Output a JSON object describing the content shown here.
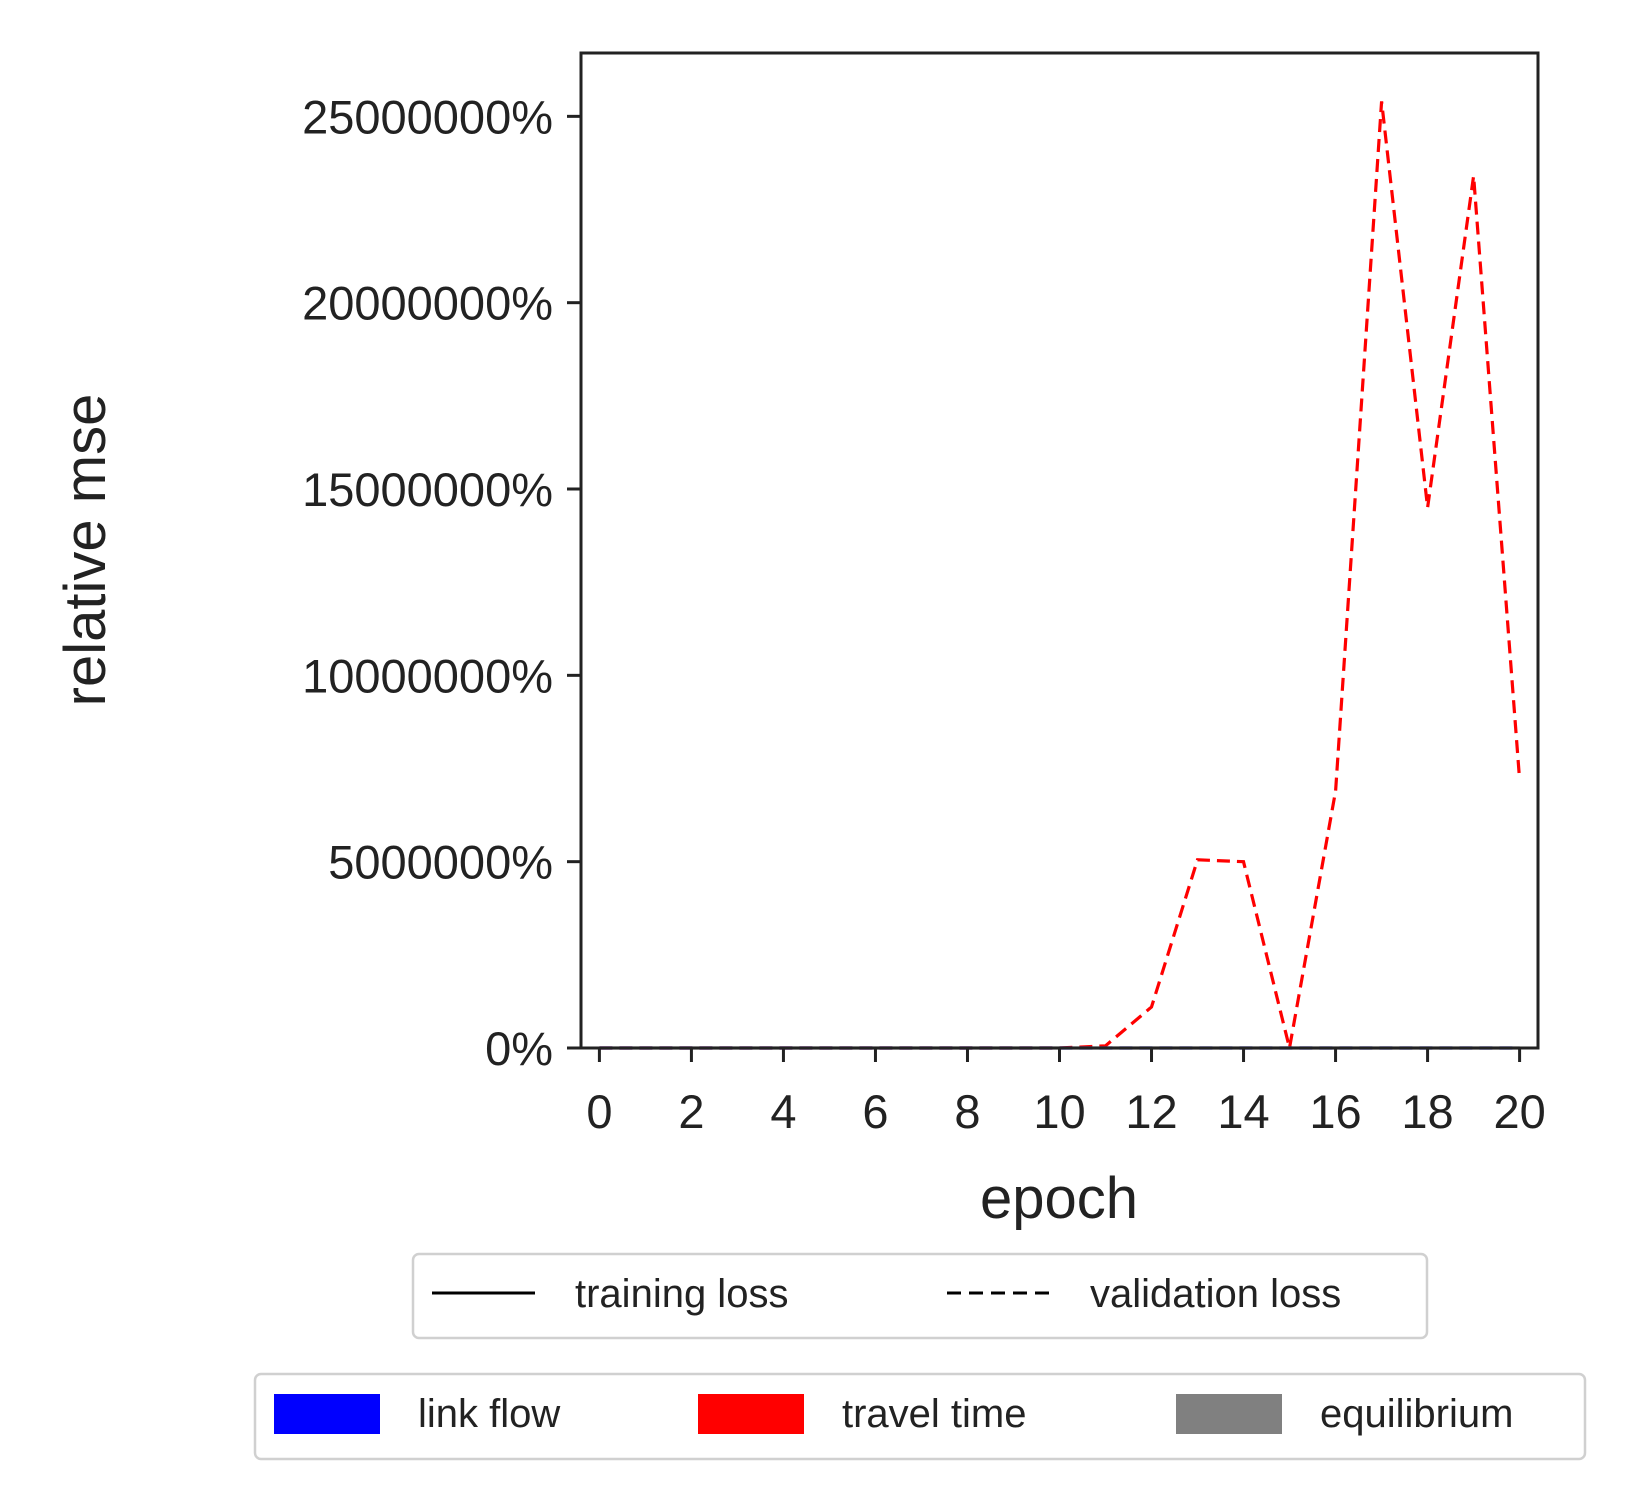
{
  "chart_data": {
    "type": "line",
    "xlabel": "epoch",
    "ylabel": "relative mse",
    "xlim": [
      -0.4,
      20.4
    ],
    "ylim": [
      0,
      26700000
    ],
    "x_ticks": [
      0,
      2,
      4,
      6,
      8,
      10,
      12,
      14,
      16,
      18,
      20
    ],
    "y_ticks": [
      0,
      5000000,
      10000000,
      15000000,
      20000000,
      25000000
    ],
    "y_tick_labels": [
      "0%",
      "5000000%",
      "10000000%",
      "15000000%",
      "20000000%",
      "25000000%"
    ],
    "grid": false,
    "colors": {
      "link flow": "#0000ff",
      "travel time": "#ff0000",
      "equilibrium": "#808080",
      "axes": "#222222",
      "legend_border": "#d0d0d0"
    },
    "series": [
      {
        "name": "travel time",
        "style": "dashed",
        "x": [
          0,
          1,
          2,
          3,
          4,
          5,
          6,
          7,
          8,
          9,
          10,
          11,
          12,
          13,
          14,
          15,
          16,
          17,
          18,
          19,
          20
        ],
        "values": [
          0,
          0,
          0,
          0,
          0,
          0,
          0,
          0,
          0,
          0,
          0,
          60000,
          1100000,
          5050000,
          5000000,
          0,
          6900000,
          25400000,
          14500000,
          23400000,
          7200000
        ]
      },
      {
        "name": "link flow",
        "style": "dashed",
        "x": [
          0,
          1,
          2,
          3,
          4,
          5,
          6,
          7,
          8,
          9,
          10,
          11,
          12,
          13,
          14,
          15,
          16,
          17,
          18,
          19,
          20
        ],
        "values": [
          0,
          0,
          0,
          0,
          0,
          0,
          0,
          0,
          0,
          0,
          0,
          0,
          0,
          0,
          0,
          0,
          0,
          0,
          0,
          0,
          0
        ]
      },
      {
        "name": "equilibrium",
        "style": "solid",
        "x": [
          0,
          1,
          2,
          3,
          4,
          5,
          6,
          7,
          8,
          9,
          10,
          11,
          12,
          13,
          14,
          15,
          16,
          17,
          18,
          19,
          20
        ],
        "values": [
          0,
          0,
          0,
          0,
          0,
          0,
          0,
          0,
          0,
          0,
          0,
          0,
          0,
          0,
          0,
          0,
          0,
          0,
          0,
          0,
          0
        ]
      }
    ],
    "legend_line_style": {
      "position": "below",
      "entries": [
        {
          "label": "training loss",
          "style": "solid"
        },
        {
          "label": "validation loss",
          "style": "dashed"
        }
      ]
    },
    "legend_components": {
      "position": "below",
      "entries": [
        {
          "label": "link flow",
          "color": "#0000ff"
        },
        {
          "label": "travel time",
          "color": "#ff0000"
        },
        {
          "label": "equilibrium",
          "color": "#808080"
        }
      ]
    }
  }
}
